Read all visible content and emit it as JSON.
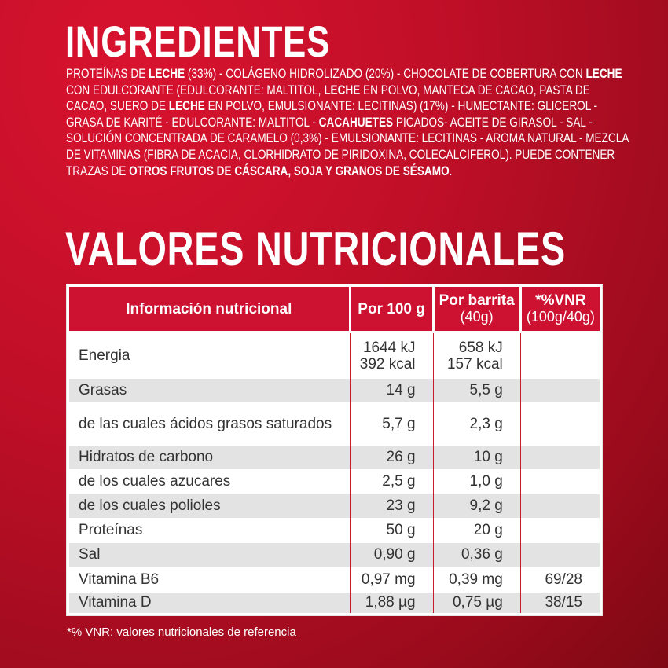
{
  "ingredients": {
    "title": "INGREDIENTES",
    "segments": [
      {
        "text": "PROTEÍNAS DE ",
        "bold": false
      },
      {
        "text": "LECHE",
        "bold": true
      },
      {
        "text": " (33%) - COLÁGENO HIDROLIZADO (20%) - CHOCOLATE DE COBERTURA CON ",
        "bold": false
      },
      {
        "text": "LECHE",
        "bold": true
      },
      {
        "text": " CON EDULCORANTE (EDULCORANTE: MALTITOL, ",
        "bold": false
      },
      {
        "text": "LECHE",
        "bold": true
      },
      {
        "text": " EN POLVO, MANTECA DE CACAO, PASTA DE CACAO, SUERO DE ",
        "bold": false
      },
      {
        "text": "LECHE",
        "bold": true
      },
      {
        "text": " EN POLVO, EMULSIONANTE: LECITINAS) (17%) - HUMECTANTE: GLICEROL - GRASA DE KARITÉ - EDULCORANTE: MALTITOL - ",
        "bold": false
      },
      {
        "text": "CACAHUETES",
        "bold": true
      },
      {
        "text": " PICADOS- ACEITE DE GIRASOL - SAL - SOLUCIÓN CONCENTRADA DE CARAMELO (0,3%) - EMULSIONANTE: LECITINAS - AROMA NATURAL - MEZCLA DE VITAMINAS (FIBRA DE ACACIA, CLORHIDRATO DE PIRIDOXINA, COLECALCIFEROL). PUEDE CONTENER TRAZAS DE ",
        "bold": false
      },
      {
        "text": "OTROS FRUTOS DE CÁSCARA, SOJA Y GRANOS DE SÉSAMO",
        "bold": true
      },
      {
        "text": ".",
        "bold": false
      }
    ]
  },
  "nutrition": {
    "title": "VALORES NUTRICIONALES",
    "header": [
      {
        "title": "Información nutricional"
      },
      {
        "title": "Por 100 g"
      },
      {
        "title": "Por barrita",
        "subtitle": "(40g)"
      },
      {
        "title": "*%VNR",
        "subtitle": "(100g/40g)"
      }
    ],
    "rows": [
      {
        "name": "Energia",
        "per_100g": [
          "1644 kJ",
          "392 kcal"
        ],
        "per_bar": [
          "658 kJ",
          "157 kcal"
        ]
      },
      {
        "name": "Grasas",
        "per_100g": [
          "14 g"
        ],
        "per_bar": [
          "5,5 g"
        ]
      },
      {
        "name": "de las cuales ácidos grasos saturados",
        "per_100g": [
          "5,7 g"
        ],
        "per_bar": [
          "2,3 g"
        ]
      },
      {
        "name": "Hidratos de carbono",
        "per_100g": [
          "26 g"
        ],
        "per_bar": [
          "10 g"
        ]
      },
      {
        "name": "de los cuales azucares",
        "per_100g": [
          "2,5 g"
        ],
        "per_bar": [
          "1,0 g"
        ]
      },
      {
        "name": "de los cuales polioles",
        "per_100g": [
          "23 g"
        ],
        "per_bar": [
          "9,2 g"
        ]
      },
      {
        "name": "Proteínas",
        "per_100g": [
          "50 g"
        ],
        "per_bar": [
          "20 g"
        ]
      },
      {
        "name": "Sal",
        "per_100g": [
          "0,90 g"
        ],
        "per_bar": [
          "0,36 g"
        ]
      },
      {
        "name": "Vitamina B6",
        "per_100g": [
          "0,97 mg"
        ],
        "per_bar": [
          "0,39 mg"
        ],
        "vnr": "69/28"
      },
      {
        "name": "Vitamina D",
        "per_100g": [
          "1,88 µg"
        ],
        "per_bar": [
          "0,75 µg"
        ],
        "vnr": "38/15"
      }
    ],
    "footnote": "*% VNR: valores nutricionales de referencia"
  }
}
